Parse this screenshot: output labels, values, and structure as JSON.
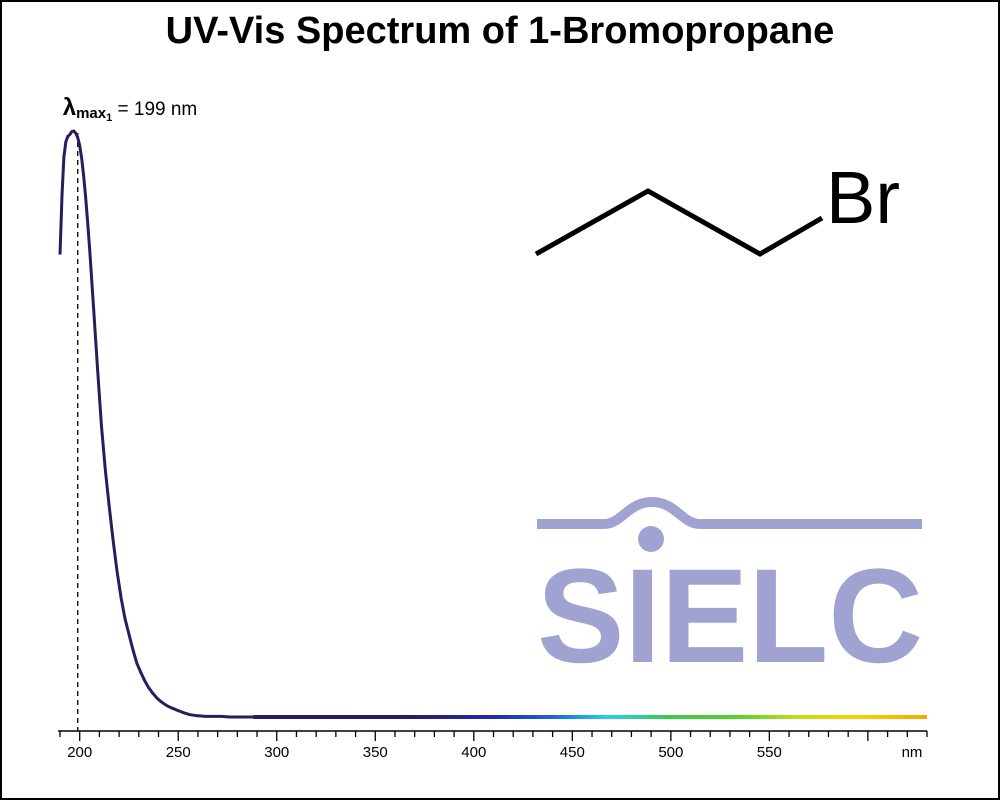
{
  "chart_data": {
    "type": "line",
    "title": "UV-Vis Spectrum of 1-Bromopropane",
    "xlabel": "nm",
    "ylabel": "",
    "xlim": [
      190,
      630
    ],
    "ylim": [
      0,
      1
    ],
    "grid": false,
    "x_ticks": [
      200,
      250,
      300,
      350,
      400,
      450,
      500,
      550
    ],
    "x_unit_label": "nm",
    "series": [
      {
        "x": [
          190,
          191,
          192,
          193,
          194,
          195,
          196,
          197,
          198,
          199,
          200,
          201,
          202,
          203,
          204,
          205,
          207,
          209,
          211,
          213,
          215,
          217,
          219,
          221,
          223,
          225,
          227,
          229,
          231,
          233,
          235,
          237,
          239,
          241,
          243,
          245,
          247,
          250,
          253,
          256,
          260,
          264,
          268,
          272,
          276,
          280,
          288,
          300,
          350,
          400,
          450,
          500,
          550,
          600,
          630
        ],
        "y": [
          0.789,
          0.89,
          0.956,
          0.982,
          0.991,
          0.994,
          0.999,
          1.0,
          0.996,
          0.989,
          0.975,
          0.953,
          0.924,
          0.888,
          0.845,
          0.8,
          0.7,
          0.598,
          0.498,
          0.422,
          0.358,
          0.3,
          0.248,
          0.203,
          0.168,
          0.141,
          0.115,
          0.092,
          0.076,
          0.062,
          0.05,
          0.041,
          0.033,
          0.027,
          0.022,
          0.018,
          0.015,
          0.011,
          0.007,
          0.004,
          0.002,
          0.001,
          0.001,
          0.001,
          0.0,
          0.0,
          0.0,
          0.0,
          0.0,
          0.0,
          0.0,
          0.0,
          0.0,
          0.0,
          0.0
        ]
      }
    ],
    "annotations": [
      {
        "lambda_symbol": "λ",
        "sub": "max",
        "subsub": "1",
        "text": " = 199 nm",
        "x": 199
      }
    ]
  },
  "molecule": {
    "atom_label": "Br"
  },
  "logo": {
    "text": "SIELC",
    "color": "#a0a3d2"
  },
  "colors": {
    "line": "#2d1a5c",
    "axis": "#000000"
  }
}
